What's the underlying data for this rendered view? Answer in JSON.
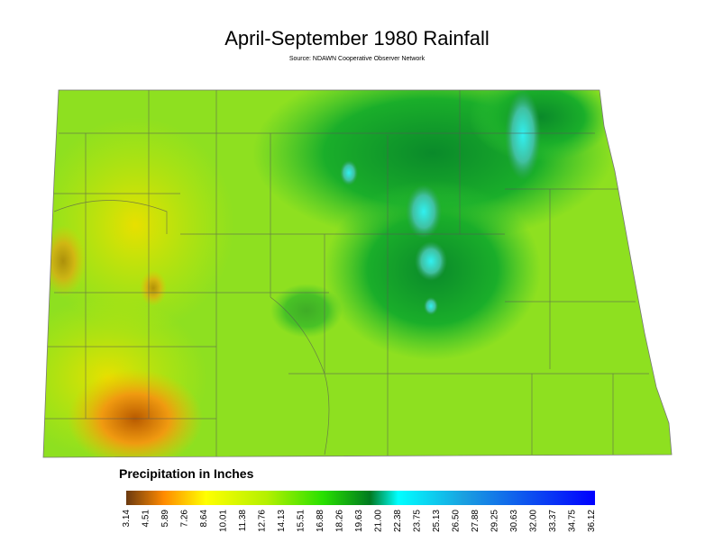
{
  "title": "April-September 1980 Rainfall",
  "source": "Source: NDAWN Cooperative Observer Network",
  "legend": {
    "title": "Precipitation in Inches",
    "ticks": [
      "3.14",
      "4.51",
      "5.89",
      "7.26",
      "8.64",
      "10.01",
      "11.38",
      "12.76",
      "14.13",
      "15.51",
      "16.88",
      "18.26",
      "19.63",
      "21.00",
      "22.38",
      "23.75",
      "25.13",
      "26.50",
      "27.88",
      "29.25",
      "30.63",
      "32.00",
      "33.37",
      "34.75",
      "36.12"
    ]
  }
}
